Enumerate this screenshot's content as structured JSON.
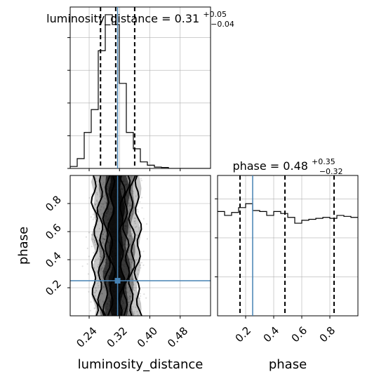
{
  "chart_data": {
    "type": "corner",
    "panels": {
      "luminosity_distance_hist": {
        "type": "histogram",
        "title": {
          "main": "luminosity_distance = 0.31",
          "plus": "+0.05",
          "minus": "−0.04"
        },
        "xlim": [
          0.19,
          0.56
        ],
        "bins": [
          0.19,
          0.2085,
          0.227,
          0.2455,
          0.264,
          0.2825,
          0.301,
          0.3195,
          0.338,
          0.3565,
          0.375,
          0.3935,
          0.412,
          0.4305,
          0.449,
          0.4675,
          0.486,
          0.5045,
          0.523,
          0.5415,
          0.56
        ],
        "counts": [
          0.6,
          3,
          11,
          18,
          36,
          47,
          44,
          26,
          11,
          6,
          2,
          1,
          0.4,
          0.3,
          0,
          0,
          0,
          0,
          0,
          0
        ],
        "quantiles": [
          0.27,
          0.31,
          0.36
        ],
        "truth": 0.315
      },
      "phase_hist": {
        "type": "histogram",
        "title": {
          "main": "phase = 0.48",
          "plus": "+0.35",
          "minus": "−0.32"
        },
        "xlim": [
          0.0,
          1.0
        ],
        "xticks": [
          "0.2",
          "0.4",
          "0.6",
          "0.8"
        ],
        "xlabel": "phase",
        "bins": [
          0,
          0.05,
          0.1,
          0.15,
          0.2,
          0.25,
          0.3,
          0.35,
          0.4,
          0.45,
          0.5,
          0.55,
          0.6,
          0.65,
          0.7,
          0.75,
          0.8,
          0.85,
          0.9,
          0.95,
          1.0
        ],
        "counts": [
          0.535,
          0.515,
          0.53,
          0.555,
          0.575,
          0.54,
          0.535,
          0.515,
          0.535,
          0.525,
          0.505,
          0.475,
          0.49,
          0.495,
          0.5,
          0.505,
          0.5,
          0.515,
          0.51,
          0.505
        ],
        "ylim": [
          0,
          0.72
        ],
        "quantiles": [
          0.16,
          0.48,
          0.83
        ],
        "truth": 0.25
      },
      "joint": {
        "type": "2d-density",
        "xlim": [
          0.19,
          0.56
        ],
        "ylim": [
          0.0,
          1.0
        ],
        "xticks": [
          "0.24",
          "0.32",
          "0.40",
          "0.48"
        ],
        "yticks": [
          "0.2",
          "0.4",
          "0.6",
          "0.8"
        ],
        "xlabel": "luminosity_distance",
        "ylabel": "phase",
        "truth": {
          "x": 0.315,
          "y": 0.25
        }
      }
    },
    "colors": {
      "truth": "#4682b4",
      "hist": "#000000",
      "grid": "#b0b0b0"
    }
  }
}
